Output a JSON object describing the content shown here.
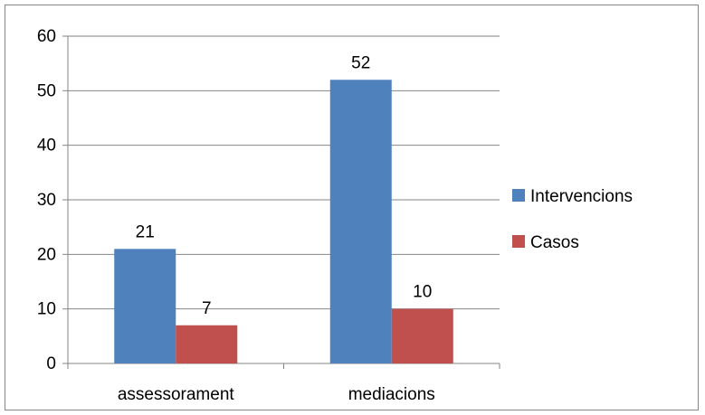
{
  "chart_data": {
    "type": "bar",
    "categories": [
      "assessorament",
      "mediacions"
    ],
    "series": [
      {
        "name": "Intervencions",
        "values": [
          21,
          52
        ],
        "color": "#4f81bd"
      },
      {
        "name": "Casos",
        "values": [
          7,
          10
        ],
        "color": "#c0504d"
      }
    ],
    "ylim": [
      0,
      60
    ],
    "yticks": [
      0,
      10,
      20,
      30,
      40,
      50,
      60
    ],
    "ytick_labels": [
      "0",
      "10",
      "20",
      "30",
      "40",
      "50",
      "60"
    ],
    "grid": true,
    "legend_position": "right",
    "data_labels": true,
    "title": "",
    "xlabel": "",
    "ylabel": ""
  }
}
